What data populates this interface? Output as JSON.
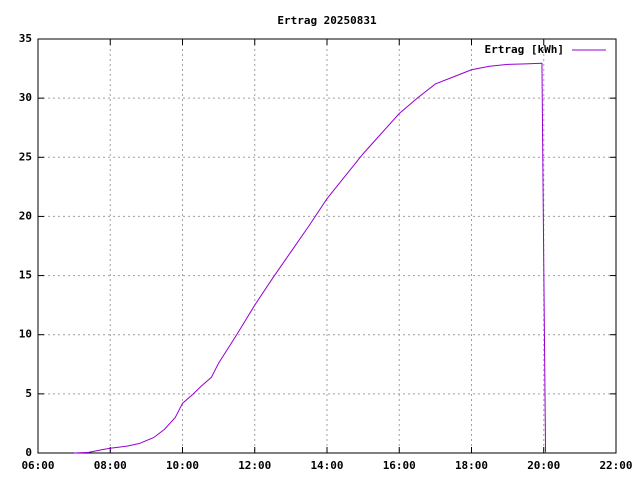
{
  "chart_data": {
    "type": "line",
    "title": "Ertrag 20250831",
    "x": [
      7.0,
      7.4,
      7.8,
      8.0,
      8.5,
      8.8,
      9.2,
      9.5,
      9.8,
      10.0,
      10.3,
      10.5,
      10.8,
      11.0,
      11.5,
      12.0,
      12.5,
      13.0,
      13.5,
      14.0,
      14.5,
      15.0,
      15.5,
      16.0,
      16.5,
      17.0,
      17.5,
      18.0,
      18.5,
      19.0,
      19.5,
      19.95,
      20.0,
      20.05
    ],
    "series": [
      {
        "name": "Ertrag [kWh]",
        "color": "#9400d3",
        "values": [
          0,
          0.05,
          0.3,
          0.4,
          0.6,
          0.8,
          1.3,
          2.0,
          3.0,
          4.2,
          5.0,
          5.6,
          6.4,
          7.6,
          10.0,
          12.5,
          14.8,
          17.0,
          19.2,
          21.5,
          23.4,
          25.3,
          27.0,
          28.7,
          30.0,
          31.2,
          31.8,
          32.4,
          32.7,
          32.85,
          32.9,
          32.95,
          16,
          0
        ]
      }
    ],
    "xlim": [
      6,
      22
    ],
    "xticks": [
      {
        "value": 6,
        "label": "06:00"
      },
      {
        "value": 8,
        "label": "08:00"
      },
      {
        "value": 10,
        "label": "10:00"
      },
      {
        "value": 12,
        "label": "12:00"
      },
      {
        "value": 14,
        "label": "14:00"
      },
      {
        "value": 16,
        "label": "16:00"
      },
      {
        "value": 18,
        "label": "18:00"
      },
      {
        "value": 20,
        "label": "20:00"
      },
      {
        "value": 22,
        "label": "22:00"
      }
    ],
    "ylim": [
      0,
      35
    ],
    "yticks": [
      0,
      5,
      10,
      15,
      20,
      25,
      30,
      35
    ],
    "grid": true,
    "legend": "top-right"
  }
}
